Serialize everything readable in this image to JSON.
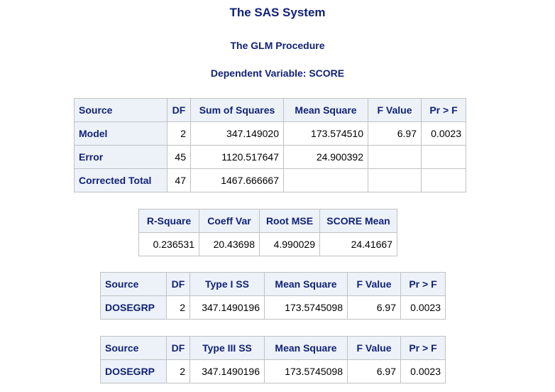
{
  "titles": {
    "system": "The SAS System",
    "procedure": "The GLM Procedure",
    "dependent": "Dependent Variable: SCORE"
  },
  "anova": {
    "headers": [
      "Source",
      "DF",
      "Sum of Squares",
      "Mean Square",
      "F Value",
      "Pr > F"
    ],
    "rows": [
      {
        "source": "Model",
        "df": "2",
        "ss": "347.149020",
        "ms": "173.574510",
        "f": "6.97",
        "p": "0.0023"
      },
      {
        "source": "Error",
        "df": "45",
        "ss": "1120.517647",
        "ms": "24.900392",
        "f": "",
        "p": ""
      },
      {
        "source": "Corrected Total",
        "df": "47",
        "ss": "1467.666667",
        "ms": "",
        "f": "",
        "p": ""
      }
    ]
  },
  "fit": {
    "headers": [
      "R-Square",
      "Coeff Var",
      "Root MSE",
      "SCORE Mean"
    ],
    "values": [
      "0.236531",
      "20.43698",
      "4.990029",
      "24.41667"
    ]
  },
  "type1": {
    "headers": [
      "Source",
      "DF",
      "Type I SS",
      "Mean Square",
      "F Value",
      "Pr > F"
    ],
    "row": {
      "source": "DOSEGRP",
      "df": "2",
      "ss": "347.1490196",
      "ms": "173.5745098",
      "f": "6.97",
      "p": "0.0023"
    }
  },
  "type3": {
    "headers": [
      "Source",
      "DF",
      "Type III SS",
      "Mean Square",
      "F Value",
      "Pr > F"
    ],
    "row": {
      "source": "DOSEGRP",
      "df": "2",
      "ss": "347.1490196",
      "ms": "173.5745098",
      "f": "6.97",
      "p": "0.0023"
    }
  },
  "colors": {
    "header_text": "#112277",
    "header_bg": "#edf2f9",
    "border": "#c1c1c1"
  }
}
